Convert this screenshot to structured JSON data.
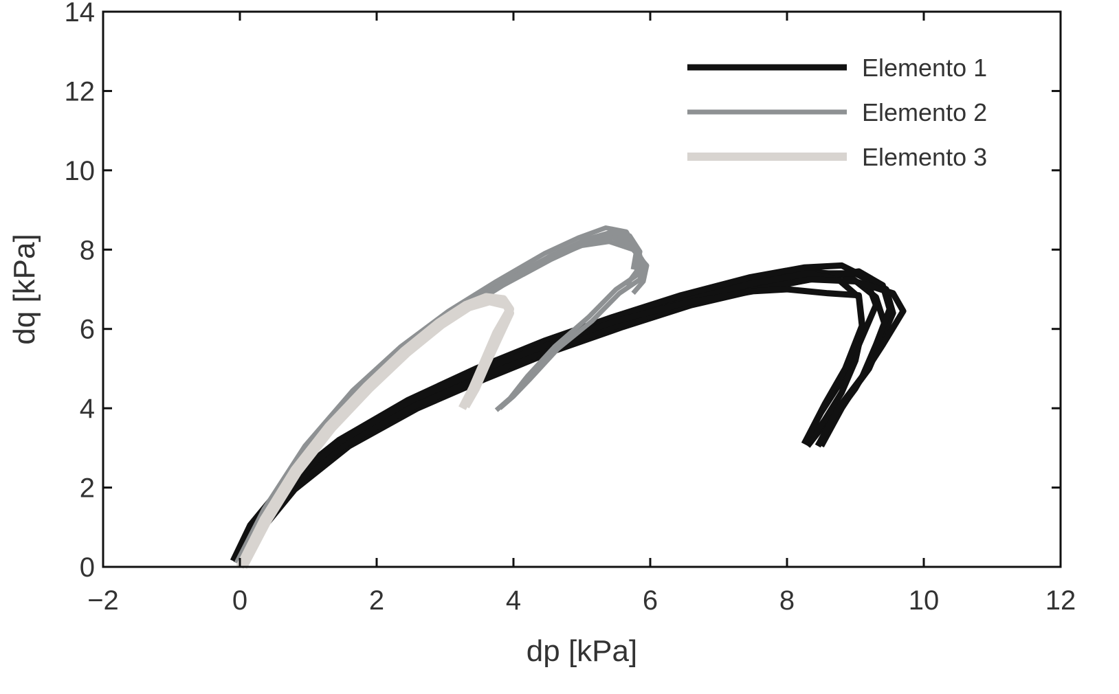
{
  "chart_data": {
    "type": "line",
    "title": "",
    "xlabel": "dp [kPa]",
    "ylabel": "dq [kPa]",
    "xlim": [
      -2,
      12
    ],
    "ylim": [
      0,
      14
    ],
    "xticks": [
      -2,
      0,
      2,
      4,
      6,
      8,
      10,
      12
    ],
    "yticks": [
      0,
      2,
      4,
      6,
      8,
      10,
      12,
      14
    ],
    "xtick_labels": [
      "−2",
      "0",
      "2",
      "4",
      "6",
      "8",
      "10",
      "12"
    ],
    "ytick_labels": [
      "0",
      "2",
      "4",
      "6",
      "8",
      "10",
      "12",
      "14"
    ],
    "grid": false,
    "legend_position": "top-right",
    "series": [
      {
        "name": "Elemento 1",
        "color": "#111111",
        "paths": [
          {
            "x": [
              -0.05,
              0.2,
              0.7,
              1.5,
              2.5,
              3.5,
              4.5,
              5.5,
              6.5,
              7.5,
              8.3,
              8.9,
              9.3,
              9.45,
              9.2,
              8.9,
              8.55,
              8.3
            ],
            "y": [
              0.1,
              1.0,
              2.05,
              3.15,
              4.15,
              4.9,
              5.6,
              6.2,
              6.75,
              7.2,
              7.45,
              7.35,
              6.8,
              6.0,
              5.0,
              4.3,
              3.6,
              3.05
            ]
          },
          {
            "x": [
              0.0,
              0.25,
              0.75,
              1.55,
              2.55,
              3.55,
              4.55,
              5.55,
              6.55,
              7.55,
              8.4,
              9.0,
              9.45,
              9.55,
              9.3,
              9.0,
              8.7,
              8.45
            ],
            "y": [
              0.05,
              0.95,
              2.0,
              3.1,
              4.05,
              4.8,
              5.5,
              6.1,
              6.65,
              7.1,
              7.4,
              7.4,
              7.0,
              6.4,
              5.4,
              4.5,
              3.8,
              3.05
            ]
          },
          {
            "x": [
              -0.1,
              0.15,
              0.65,
              1.45,
              2.45,
              3.45,
              4.45,
              5.45,
              6.45,
              7.45,
              8.25,
              8.8,
              9.15,
              9.3,
              9.05,
              8.8,
              8.5,
              8.25
            ],
            "y": [
              0.15,
              1.05,
              2.1,
              3.2,
              4.2,
              5.0,
              5.7,
              6.3,
              6.85,
              7.3,
              7.55,
              7.6,
              7.3,
              6.6,
              5.6,
              4.7,
              3.9,
              3.1
            ]
          },
          {
            "x": [
              0.05,
              0.3,
              0.8,
              1.6,
              2.6,
              3.6,
              4.6,
              5.6,
              6.6,
              7.6,
              8.5,
              9.05,
              9.4,
              9.5,
              9.3,
              9.1,
              8.8,
              8.5
            ],
            "y": [
              0.05,
              0.9,
              1.95,
              3.05,
              4.0,
              4.75,
              5.45,
              6.05,
              6.6,
              7.0,
              7.3,
              7.45,
              7.1,
              6.5,
              5.6,
              4.8,
              4.0,
              3.05
            ]
          },
          {
            "x": [
              -0.05,
              0.2,
              0.7,
              1.5,
              2.5,
              3.5,
              4.5,
              5.5,
              6.5,
              7.5,
              8.3,
              8.75,
              9.05,
              9.1,
              9.0,
              8.8,
              8.55,
              8.3
            ],
            "y": [
              0.1,
              1.0,
              2.05,
              3.15,
              4.1,
              4.85,
              5.55,
              6.15,
              6.7,
              7.15,
              7.4,
              7.25,
              6.8,
              6.0,
              5.2,
              4.4,
              3.7,
              3.1
            ]
          },
          {
            "x": [
              0.0,
              0.25,
              0.75,
              1.55,
              2.55,
              3.55,
              4.55,
              5.55,
              6.55,
              7.55,
              8.35,
              9.0,
              9.55,
              9.7,
              9.4,
              9.1,
              8.75,
              8.45
            ],
            "y": [
              0.05,
              0.95,
              2.0,
              3.1,
              4.05,
              4.8,
              5.5,
              6.1,
              6.6,
              7.0,
              7.25,
              7.2,
              6.9,
              6.45,
              5.6,
              4.8,
              4.0,
              3.05
            ]
          },
          {
            "x": [
              -0.05,
              0.2,
              0.7,
              1.5,
              2.5,
              3.5,
              4.5,
              5.5,
              6.5,
              7.5,
              8.0,
              8.6,
              9.05,
              9.1,
              8.85,
              8.55,
              8.25
            ],
            "y": [
              0.15,
              1.05,
              2.1,
              3.2,
              4.2,
              4.95,
              5.6,
              6.2,
              6.65,
              6.95,
              7.0,
              6.9,
              6.85,
              6.1,
              5.0,
              4.1,
              3.1
            ]
          }
        ]
      },
      {
        "name": "Elemento 2",
        "color": "#8e9193",
        "paths": [
          {
            "x": [
              0.0,
              0.4,
              1.0,
              1.7,
              2.4,
              3.1,
              3.8,
              4.5,
              5.0,
              5.4,
              5.7,
              5.85,
              5.8,
              5.5,
              5.1,
              4.6,
              4.2,
              3.95,
              3.75
            ],
            "y": [
              0.05,
              1.4,
              3.0,
              4.4,
              5.5,
              6.4,
              7.15,
              7.8,
              8.2,
              8.4,
              8.25,
              7.85,
              7.35,
              7.0,
              6.3,
              5.55,
              4.8,
              4.25,
              3.95
            ]
          },
          {
            "x": [
              0.05,
              0.45,
              1.05,
              1.75,
              2.45,
              3.15,
              3.85,
              4.55,
              5.05,
              5.45,
              5.75,
              5.9,
              5.85,
              5.55,
              5.15,
              4.65,
              4.25,
              4.0,
              3.8
            ],
            "y": [
              0.0,
              1.35,
              2.95,
              4.35,
              5.45,
              6.35,
              7.1,
              7.75,
              8.15,
              8.3,
              8.1,
              7.7,
              7.25,
              6.9,
              6.2,
              5.5,
              4.75,
              4.3,
              4.0
            ]
          },
          {
            "x": [
              -0.05,
              0.35,
              0.95,
              1.65,
              2.35,
              3.05,
              3.75,
              4.45,
              4.95,
              5.35,
              5.65,
              5.8,
              5.75
            ],
            "y": [
              0.1,
              1.45,
              3.05,
              4.45,
              5.55,
              6.45,
              7.2,
              7.9,
              8.3,
              8.55,
              8.45,
              8.0,
              7.5
            ]
          },
          {
            "x": [
              0.0,
              0.4,
              1.0,
              1.7,
              2.4,
              3.1,
              3.8,
              4.5,
              5.0,
              5.4,
              5.75,
              5.95,
              5.9,
              5.75
            ],
            "y": [
              0.05,
              1.4,
              3.0,
              4.4,
              5.5,
              6.4,
              7.1,
              7.75,
              8.1,
              8.2,
              8.0,
              7.6,
              7.2,
              6.9
            ]
          },
          {
            "x": [
              0.05,
              0.45,
              1.05,
              1.75,
              2.45,
              3.15,
              3.85,
              4.55,
              5.05,
              5.45,
              5.7,
              5.85,
              5.8,
              5.65
            ],
            "y": [
              0.0,
              1.4,
              3.0,
              4.35,
              5.45,
              6.4,
              7.15,
              7.85,
              8.25,
              8.45,
              8.35,
              7.95,
              7.45,
              7.1
            ]
          }
        ]
      },
      {
        "name": "Elemento 3",
        "color": "#d8d4d0",
        "paths": [
          {
            "x": [
              0.0,
              0.35,
              0.8,
              1.3,
              1.85,
              2.4,
              2.9,
              3.3,
              3.6,
              3.85,
              3.95,
              3.75,
              3.55,
              3.4,
              3.25
            ],
            "y": [
              0.0,
              1.2,
              2.45,
              3.55,
              4.55,
              5.45,
              6.15,
              6.6,
              6.8,
              6.75,
              6.5,
              5.9,
              5.1,
              4.5,
              4.0
            ]
          },
          {
            "x": [
              0.05,
              0.4,
              0.85,
              1.35,
              1.9,
              2.45,
              2.95,
              3.35,
              3.65,
              3.9,
              3.95,
              3.8,
              3.6,
              3.45,
              3.3
            ],
            "y": [
              0.0,
              1.15,
              2.4,
              3.5,
              4.5,
              5.4,
              6.1,
              6.55,
              6.7,
              6.6,
              6.4,
              5.85,
              5.1,
              4.5,
              4.05
            ]
          }
        ]
      }
    ]
  }
}
